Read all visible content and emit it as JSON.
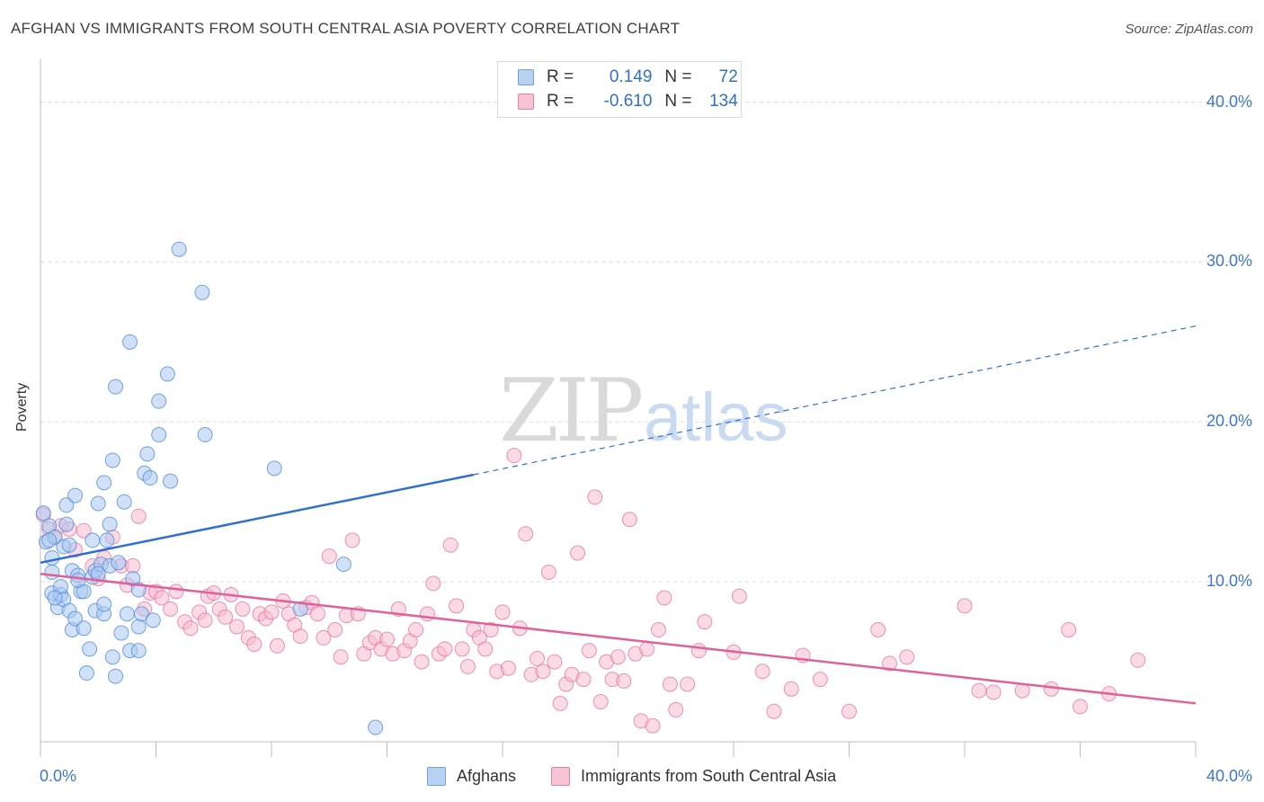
{
  "title": "AFGHAN VS IMMIGRANTS FROM SOUTH CENTRAL ASIA POVERTY CORRELATION CHART",
  "source": "Source: ZipAtlas.com",
  "watermark": {
    "zip": "ZIP",
    "atlas": "atlas"
  },
  "legend_stats": [
    {
      "series": "Afghans",
      "r_label": "R =",
      "r_value": "0.149",
      "n_label": "N =",
      "n_value": "72",
      "color": "#6fa0e0",
      "fill": "#b8d0f2"
    },
    {
      "series": "Immigrants from South Central Asia",
      "r_label": "R =",
      "r_value": "-0.610",
      "n_label": "N =",
      "n_value": "134",
      "color": "#e87fa4",
      "fill": "#f6c3d4"
    }
  ],
  "chart_data": {
    "type": "scatter",
    "title": "AFGHAN VS IMMIGRANTS FROM SOUTH CENTRAL ASIA POVERTY CORRELATION CHART",
    "xlabel": "",
    "ylabel": "Poverty",
    "xlim": [
      0,
      40
    ],
    "ylim": [
      0,
      42
    ],
    "x_tick_labels": [
      {
        "value": 0,
        "label": "0.0%"
      },
      {
        "value": 40,
        "label": "40.0%"
      }
    ],
    "y_tick_labels": [
      {
        "value": 10,
        "label": "10.0%"
      },
      {
        "value": 20,
        "label": "20.0%"
      },
      {
        "value": 30,
        "label": "30.0%"
      },
      {
        "value": 40,
        "label": "40.0%"
      }
    ],
    "x_minor_ticks": [
      0,
      4,
      8,
      12,
      16,
      20,
      24,
      28,
      32,
      36,
      40
    ],
    "grid": true,
    "legend_placement": "bottom-center",
    "series": [
      {
        "name": "Afghans",
        "color": "#4a86d8",
        "fill": "#a9c8f0",
        "trend": {
          "x0": 0,
          "y0": 11.2,
          "x1": 15,
          "y1": 16.7,
          "dashed_to_x": 40,
          "dashed_to_y": 26.0
        },
        "points": [
          [
            0.2,
            12.5
          ],
          [
            0.3,
            13.5
          ],
          [
            0.4,
            11.5
          ],
          [
            0.4,
            10.6
          ],
          [
            0.4,
            9.3
          ],
          [
            0.5,
            12.8
          ],
          [
            0.6,
            8.4
          ],
          [
            0.7,
            9.2
          ],
          [
            0.7,
            9.7
          ],
          [
            0.8,
            8.9
          ],
          [
            0.8,
            12.2
          ],
          [
            0.9,
            14.8
          ],
          [
            0.9,
            13.6
          ],
          [
            1.0,
            12.3
          ],
          [
            1.0,
            8.2
          ],
          [
            1.1,
            7.0
          ],
          [
            1.1,
            10.7
          ],
          [
            1.2,
            15.4
          ],
          [
            1.2,
            7.7
          ],
          [
            1.3,
            10.4
          ],
          [
            1.4,
            9.4
          ],
          [
            1.5,
            9.4
          ],
          [
            1.5,
            7.1
          ],
          [
            1.6,
            4.3
          ],
          [
            1.7,
            5.8
          ],
          [
            1.8,
            12.6
          ],
          [
            1.8,
            10.3
          ],
          [
            1.9,
            8.2
          ],
          [
            1.9,
            10.7
          ],
          [
            2.0,
            14.9
          ],
          [
            2.1,
            11.1
          ],
          [
            2.2,
            8.0
          ],
          [
            2.2,
            8.6
          ],
          [
            2.2,
            16.2
          ],
          [
            2.3,
            12.6
          ],
          [
            2.4,
            11.0
          ],
          [
            2.4,
            13.6
          ],
          [
            2.5,
            17.6
          ],
          [
            2.5,
            5.3
          ],
          [
            2.6,
            22.2
          ],
          [
            2.6,
            4.1
          ],
          [
            2.7,
            11.2
          ],
          [
            2.8,
            6.8
          ],
          [
            2.9,
            15.0
          ],
          [
            3.0,
            8.0
          ],
          [
            3.1,
            5.7
          ],
          [
            3.1,
            25.0
          ],
          [
            3.2,
            10.2
          ],
          [
            3.4,
            7.2
          ],
          [
            3.4,
            9.5
          ],
          [
            3.4,
            5.7
          ],
          [
            3.5,
            8.0
          ],
          [
            3.6,
            16.8
          ],
          [
            3.7,
            18.0
          ],
          [
            3.8,
            16.5
          ],
          [
            3.9,
            7.6
          ],
          [
            4.1,
            19.2
          ],
          [
            4.1,
            21.3
          ],
          [
            4.4,
            23.0
          ],
          [
            4.5,
            16.3
          ],
          [
            4.8,
            30.8
          ],
          [
            5.6,
            28.1
          ],
          [
            5.7,
            19.2
          ],
          [
            8.1,
            17.1
          ],
          [
            9.0,
            8.3
          ],
          [
            10.5,
            11.1
          ],
          [
            11.6,
            0.9
          ],
          [
            0.1,
            14.3
          ],
          [
            0.3,
            12.6
          ],
          [
            0.5,
            9.0
          ],
          [
            1.3,
            10.1
          ],
          [
            2.0,
            10.5
          ]
        ]
      },
      {
        "name": "Immigrants from South Central Asia",
        "color": "#e8709a",
        "fill": "#f5bcd0",
        "trend": {
          "x0": 0,
          "y0": 10.5,
          "x1": 40,
          "y1": 2.4
        },
        "points": [
          [
            0.1,
            14.2
          ],
          [
            0.3,
            13.3
          ],
          [
            0.5,
            12.8
          ],
          [
            0.7,
            13.5
          ],
          [
            1.0,
            13.3
          ],
          [
            1.2,
            12.0
          ],
          [
            1.5,
            13.2
          ],
          [
            1.8,
            11.0
          ],
          [
            2.0,
            10.2
          ],
          [
            2.2,
            11.5
          ],
          [
            2.5,
            12.8
          ],
          [
            2.8,
            11.0
          ],
          [
            3.0,
            9.8
          ],
          [
            3.2,
            11.0
          ],
          [
            3.4,
            14.1
          ],
          [
            3.6,
            8.3
          ],
          [
            3.8,
            9.3
          ],
          [
            4.0,
            9.4
          ],
          [
            4.2,
            9.0
          ],
          [
            4.5,
            8.3
          ],
          [
            4.7,
            9.4
          ],
          [
            5.0,
            7.5
          ],
          [
            5.2,
            7.1
          ],
          [
            5.5,
            8.1
          ],
          [
            5.7,
            7.6
          ],
          [
            5.8,
            9.1
          ],
          [
            6.0,
            9.3
          ],
          [
            6.2,
            8.3
          ],
          [
            6.4,
            7.8
          ],
          [
            6.6,
            9.2
          ],
          [
            6.8,
            7.2
          ],
          [
            7.0,
            8.3
          ],
          [
            7.2,
            6.5
          ],
          [
            7.4,
            6.1
          ],
          [
            7.6,
            8.0
          ],
          [
            7.8,
            7.7
          ],
          [
            8.0,
            8.1
          ],
          [
            8.2,
            6.0
          ],
          [
            8.4,
            8.8
          ],
          [
            8.6,
            8.0
          ],
          [
            8.8,
            7.3
          ],
          [
            9.0,
            6.6
          ],
          [
            9.2,
            8.4
          ],
          [
            9.4,
            8.7
          ],
          [
            9.6,
            8.0
          ],
          [
            9.8,
            6.5
          ],
          [
            10.0,
            11.6
          ],
          [
            10.2,
            7.0
          ],
          [
            10.4,
            5.3
          ],
          [
            10.6,
            7.9
          ],
          [
            10.8,
            12.6
          ],
          [
            11.0,
            8.0
          ],
          [
            11.2,
            5.5
          ],
          [
            11.4,
            6.2
          ],
          [
            11.6,
            6.5
          ],
          [
            11.8,
            5.8
          ],
          [
            12.0,
            6.4
          ],
          [
            12.2,
            5.5
          ],
          [
            12.4,
            8.3
          ],
          [
            12.6,
            5.7
          ],
          [
            12.8,
            6.3
          ],
          [
            13.0,
            7.0
          ],
          [
            13.2,
            5.0
          ],
          [
            13.4,
            8.0
          ],
          [
            13.6,
            9.9
          ],
          [
            13.8,
            5.5
          ],
          [
            14.0,
            5.8
          ],
          [
            14.2,
            12.3
          ],
          [
            14.4,
            8.5
          ],
          [
            14.6,
            5.8
          ],
          [
            14.8,
            4.7
          ],
          [
            15.0,
            7.0
          ],
          [
            15.2,
            6.5
          ],
          [
            15.4,
            5.8
          ],
          [
            15.6,
            7.0
          ],
          [
            15.8,
            4.4
          ],
          [
            16.0,
            8.1
          ],
          [
            16.2,
            4.6
          ],
          [
            16.4,
            17.9
          ],
          [
            16.6,
            7.1
          ],
          [
            16.8,
            13.0
          ],
          [
            17.0,
            4.2
          ],
          [
            17.2,
            5.2
          ],
          [
            17.4,
            4.4
          ],
          [
            17.6,
            10.6
          ],
          [
            17.8,
            5.0
          ],
          [
            18.0,
            2.4
          ],
          [
            18.2,
            3.6
          ],
          [
            18.4,
            4.2
          ],
          [
            18.6,
            11.8
          ],
          [
            18.8,
            3.9
          ],
          [
            19.0,
            5.7
          ],
          [
            19.2,
            15.3
          ],
          [
            19.4,
            2.5
          ],
          [
            19.6,
            5.0
          ],
          [
            19.8,
            3.9
          ],
          [
            20.0,
            5.3
          ],
          [
            20.2,
            3.8
          ],
          [
            20.4,
            13.9
          ],
          [
            20.6,
            5.5
          ],
          [
            20.8,
            1.3
          ],
          [
            21.0,
            5.8
          ],
          [
            21.2,
            1.0
          ],
          [
            21.4,
            7.0
          ],
          [
            21.6,
            9.0
          ],
          [
            21.8,
            3.6
          ],
          [
            22.0,
            2.0
          ],
          [
            22.4,
            3.6
          ],
          [
            22.8,
            5.7
          ],
          [
            23.0,
            7.5
          ],
          [
            24.0,
            5.6
          ],
          [
            24.2,
            9.1
          ],
          [
            25.0,
            4.4
          ],
          [
            25.4,
            1.9
          ],
          [
            26.0,
            3.3
          ],
          [
            26.4,
            5.4
          ],
          [
            27.0,
            3.9
          ],
          [
            28.0,
            1.9
          ],
          [
            29.0,
            7.0
          ],
          [
            29.4,
            4.9
          ],
          [
            30.0,
            5.3
          ],
          [
            32.0,
            8.5
          ],
          [
            32.5,
            3.2
          ],
          [
            33.0,
            3.1
          ],
          [
            34.0,
            3.2
          ],
          [
            35.0,
            3.3
          ],
          [
            35.6,
            7.0
          ],
          [
            36.0,
            2.2
          ],
          [
            37.0,
            3.0
          ],
          [
            38.0,
            5.1
          ]
        ]
      }
    ]
  }
}
